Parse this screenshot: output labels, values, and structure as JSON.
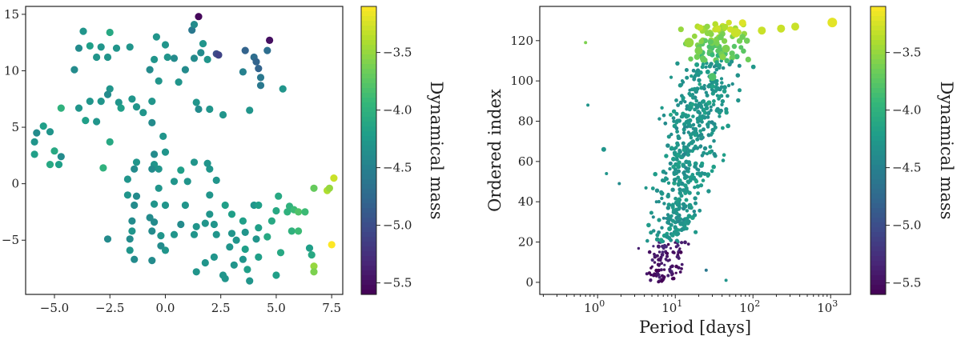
{
  "colors": {
    "viridis": [
      "#440154",
      "#482878",
      "#3e4989",
      "#31688e",
      "#26828e",
      "#1f9e89",
      "#35b779",
      "#6ece58",
      "#b5de2b",
      "#fde725"
    ],
    "axis": "#222222"
  },
  "chart_data": [
    {
      "type": "scatter",
      "title": "",
      "xlabel": "",
      "ylabel": "",
      "xlim": [
        -6.3,
        8.0
      ],
      "ylim": [
        -9.8,
        15.7
      ],
      "xticks": [
        -5.0,
        -2.5,
        0.0,
        2.5,
        5.0,
        7.5
      ],
      "xtick_labels": [
        "−5.0",
        "−2.5",
        "0.0",
        "2.5",
        "5.0",
        "7.5"
      ],
      "yticks": [
        -5,
        0,
        5,
        10,
        15
      ],
      "ytick_labels": [
        "−5",
        "0",
        "5",
        "10",
        "15"
      ],
      "colorbar": {
        "label": "Dynamical mass",
        "range": [
          -5.6,
          -3.1
        ],
        "ticks": [
          -3.5,
          -4.0,
          -4.5,
          -5.0,
          -5.5
        ],
        "tick_labels": [
          "−3.5",
          "−4.0",
          "−4.5",
          "−5.0",
          "−5.5"
        ]
      },
      "points": [
        [
          1.5,
          14.8,
          -5.55
        ],
        [
          1.2,
          13.6,
          -4.6
        ],
        [
          1.3,
          14.1,
          -4.4
        ],
        [
          4.7,
          12.7,
          -5.5
        ],
        [
          -3.7,
          13.5,
          -4.3
        ],
        [
          -2.5,
          13.4,
          -4.1
        ],
        [
          -0.4,
          13.0,
          -4.3
        ],
        [
          -3.4,
          12.2,
          -4.2
        ],
        [
          -2.9,
          12.1,
          -4.3
        ],
        [
          -2.2,
          12.0,
          -4.3
        ],
        [
          -3.9,
          12.0,
          -4.4
        ],
        [
          -1.6,
          12.1,
          -4.3
        ],
        [
          0.0,
          12.3,
          -4.3
        ],
        [
          -2.6,
          11.2,
          -4.3
        ],
        [
          -3.1,
          11.2,
          -4.3
        ],
        [
          -0.5,
          11.0,
          -4.3
        ],
        [
          0.1,
          11.2,
          -4.3
        ],
        [
          0.4,
          11.1,
          -4.4
        ],
        [
          1.7,
          12.4,
          -4.3
        ],
        [
          1.6,
          11.6,
          -4.4
        ],
        [
          1.3,
          11.1,
          -4.4
        ],
        [
          1.9,
          11.0,
          -4.3
        ],
        [
          2.3,
          11.5,
          -5.0
        ],
        [
          2.4,
          11.4,
          -4.4
        ],
        [
          2.4,
          11.4,
          -5.1
        ],
        [
          3.6,
          11.8,
          -4.8
        ],
        [
          4.6,
          11.8,
          -4.7
        ],
        [
          4.0,
          11.2,
          -4.7
        ],
        [
          4.1,
          10.8,
          -4.8
        ],
        [
          4.2,
          10.2,
          -4.8
        ],
        [
          4.3,
          9.4,
          -4.6
        ],
        [
          4.3,
          8.7,
          -4.6
        ],
        [
          3.5,
          9.9,
          -4.5
        ],
        [
          -4.1,
          10.1,
          -4.4
        ],
        [
          -0.7,
          10.1,
          -4.4
        ],
        [
          0.9,
          10.1,
          -4.4
        ],
        [
          -0.3,
          9.1,
          -4.3
        ],
        [
          0.6,
          9.0,
          -4.3
        ],
        [
          -2.5,
          8.4,
          -4.3
        ],
        [
          -2.6,
          7.9,
          -4.4
        ],
        [
          5.3,
          8.4,
          -4.3
        ],
        [
          -3.4,
          7.3,
          -4.3
        ],
        [
          -2.9,
          7.3,
          -4.3
        ],
        [
          -2.1,
          7.2,
          -4.3
        ],
        [
          -1.5,
          7.5,
          -4.3
        ],
        [
          -0.6,
          7.3,
          -4.3
        ],
        [
          1.4,
          7.2,
          -4.3
        ],
        [
          1.5,
          6.6,
          -4.4
        ],
        [
          -2.0,
          6.7,
          -4.2
        ],
        [
          -1.3,
          6.8,
          -4.3
        ],
        [
          -1.0,
          6.3,
          -4.3
        ],
        [
          2.0,
          6.6,
          -4.3
        ],
        [
          2.6,
          6.1,
          -4.3
        ],
        [
          3.8,
          6.5,
          -4.3
        ],
        [
          -3.9,
          6.7,
          -4.3
        ],
        [
          -3.6,
          5.6,
          -4.2
        ],
        [
          -3.1,
          5.5,
          -4.3
        ],
        [
          -0.6,
          5.4,
          -4.4
        ],
        [
          -4.7,
          6.7,
          -4.0
        ],
        [
          -5.5,
          5.1,
          -4.2
        ],
        [
          -5.2,
          4.6,
          -4.3
        ],
        [
          -5.8,
          4.5,
          -4.4
        ],
        [
          -0.1,
          4.2,
          -4.3
        ],
        [
          -2.5,
          3.7,
          -4.1
        ],
        [
          -5.9,
          3.7,
          -4.3
        ],
        [
          -5.0,
          2.9,
          -4.1
        ],
        [
          -5.9,
          2.6,
          -4.2
        ],
        [
          -4.7,
          2.4,
          -4.4
        ],
        [
          -5.2,
          1.7,
          -4.1
        ],
        [
          -4.8,
          1.7,
          -4.2
        ],
        [
          -0.5,
          2.6,
          -4.4
        ],
        [
          0.0,
          2.8,
          -4.3
        ],
        [
          -1.3,
          1.9,
          -4.3
        ],
        [
          -0.5,
          1.7,
          -4.3
        ],
        [
          1.3,
          1.9,
          -4.3
        ],
        [
          1.9,
          1.8,
          -4.3
        ],
        [
          -2.8,
          1.4,
          -4.0
        ],
        [
          -1.4,
          1.3,
          -4.4
        ],
        [
          -0.6,
          1.3,
          -4.4
        ],
        [
          -0.3,
          1.3,
          -4.3
        ],
        [
          0.7,
          1.2,
          -4.2
        ],
        [
          2.0,
          1.3,
          -4.3
        ],
        [
          -1.7,
          0.4,
          -4.3
        ],
        [
          0.4,
          0.2,
          -4.3
        ],
        [
          1.0,
          0.2,
          -4.3
        ],
        [
          2.3,
          0.3,
          -4.3
        ],
        [
          -0.3,
          -0.4,
          -4.3
        ],
        [
          -1.7,
          -1.0,
          -4.3
        ],
        [
          -1.3,
          -1.1,
          -4.4
        ],
        [
          2.0,
          -1.0,
          -4.3
        ],
        [
          -1.4,
          -1.9,
          -4.4
        ],
        [
          -0.5,
          -1.8,
          -4.3
        ],
        [
          0.0,
          -1.9,
          -4.3
        ],
        [
          0.9,
          -1.9,
          -4.3
        ],
        [
          2.7,
          -1.9,
          -4.2
        ],
        [
          4.0,
          -1.9,
          -4.3
        ],
        [
          4.2,
          -1.9,
          -4.2
        ],
        [
          5.1,
          -1.1,
          -4.1
        ],
        [
          5.6,
          -2.0,
          -4.0
        ],
        [
          5.8,
          -2.3,
          -3.9
        ],
        [
          6.7,
          -0.4,
          -3.7
        ],
        [
          7.3,
          -0.6,
          -3.4
        ],
        [
          7.6,
          0.5,
          -3.3
        ],
        [
          7.4,
          -0.4,
          -3.5
        ],
        [
          -1.5,
          -3.3,
          -4.4
        ],
        [
          -0.7,
          -3.0,
          -4.4
        ],
        [
          2.0,
          -2.7,
          -4.3
        ],
        [
          3.0,
          -2.7,
          -4.2
        ],
        [
          5.0,
          -2.4,
          -4.1
        ],
        [
          5.5,
          -2.5,
          -4.0
        ],
        [
          -0.5,
          -3.4,
          -4.4
        ],
        [
          0.7,
          -3.6,
          -4.4
        ],
        [
          2.2,
          -3.6,
          -4.3
        ],
        [
          3.5,
          -3.3,
          -4.2
        ],
        [
          6.0,
          -2.5,
          -3.8
        ],
        [
          6.3,
          -2.5,
          -3.9
        ],
        [
          1.4,
          -3.8,
          -4.3
        ],
        [
          1.8,
          -3.5,
          -4.3
        ],
        [
          4.2,
          -3.9,
          -4.2
        ],
        [
          4.8,
          -3.3,
          -4.1
        ],
        [
          -1.5,
          -4.2,
          -4.3
        ],
        [
          -0.6,
          -4.2,
          -4.4
        ],
        [
          1.3,
          -4.5,
          -4.3
        ],
        [
          2.3,
          -4.5,
          -4.3
        ],
        [
          3.0,
          -4.4,
          -4.3
        ],
        [
          3.6,
          -4.3,
          -4.3
        ],
        [
          5.7,
          -4.2,
          -4.0
        ],
        [
          6.0,
          -4.2,
          -3.9
        ],
        [
          -2.6,
          -4.9,
          -4.4
        ],
        [
          -1.6,
          -4.9,
          -4.4
        ],
        [
          -0.2,
          -4.6,
          -4.3
        ],
        [
          0.4,
          -4.5,
          -4.3
        ],
        [
          3.2,
          -5.0,
          -4.3
        ],
        [
          4.1,
          -4.9,
          -4.3
        ],
        [
          -0.2,
          -5.5,
          -4.4
        ],
        [
          -1.6,
          -5.9,
          -4.3
        ],
        [
          0.0,
          -5.9,
          -4.3
        ],
        [
          2.9,
          -5.6,
          -4.3
        ],
        [
          3.6,
          -5.8,
          -4.2
        ],
        [
          -1.4,
          -6.7,
          -4.4
        ],
        [
          -0.6,
          -6.8,
          -4.4
        ],
        [
          2.2,
          -6.5,
          -4.3
        ],
        [
          3.5,
          -6.7,
          -4.3
        ],
        [
          4.2,
          -6.5,
          -4.2
        ],
        [
          5.2,
          -6.1,
          -4.1
        ],
        [
          6.5,
          -5.7,
          -4.2
        ],
        [
          7.5,
          -5.4,
          -3.1
        ],
        [
          3.1,
          -7.2,
          -4.3
        ],
        [
          1.8,
          -7.0,
          -4.3
        ],
        [
          3.7,
          -7.6,
          -4.2
        ],
        [
          6.7,
          -7.3,
          -3.5
        ],
        [
          6.7,
          -7.8,
          -3.6
        ],
        [
          1.4,
          -7.8,
          -4.3
        ],
        [
          2.6,
          -8.1,
          -4.3
        ],
        [
          2.7,
          -8.4,
          -4.3
        ],
        [
          3.8,
          -8.6,
          -4.3
        ],
        [
          5.0,
          -8.1,
          -4.2
        ],
        [
          6.6,
          -6.3,
          -4.1
        ],
        [
          4.6,
          -4.7,
          -4.1
        ]
      ]
    },
    {
      "type": "scatter",
      "title": "",
      "xlabel": "Period [days]",
      "ylabel": "Ordered index",
      "xscale": "log",
      "xlim": [
        0.18,
        1800
      ],
      "ylim": [
        -6,
        137
      ],
      "xticks": [
        1,
        10,
        100,
        1000
      ],
      "xtick_labels": [
        "10^0",
        "10^1",
        "10^2",
        "10^3"
      ],
      "yticks": [
        0,
        20,
        40,
        60,
        80,
        100,
        120
      ],
      "ytick_labels": [
        "0",
        "20",
        "40",
        "60",
        "80",
        "100",
        "120"
      ],
      "colorbar": {
        "label": "Dynamical mass",
        "range": [
          -5.6,
          -3.1
        ],
        "ticks": [
          -3.5,
          -4.0,
          -4.5,
          -5.0,
          -5.5
        ],
        "tick_labels": [
          "−3.5",
          "−4.0",
          "−4.5",
          "−5.0",
          "−5.5"
        ]
      },
      "generator": {
        "description": "dense cloud of ~700 points; ordered index rises with period, mass increases with index",
        "n_points": 700,
        "index_max": 129,
        "mass_min": -5.5,
        "mass_max": -3.2
      },
      "highlights": [
        [
          1050,
          129,
          -3.2,
          6
        ],
        [
          350,
          127,
          -3.3,
          5
        ],
        [
          230,
          126,
          -3.3,
          5
        ],
        [
          130,
          125,
          -3.3,
          5
        ],
        [
          60,
          124,
          -3.3,
          6
        ],
        [
          15,
          119,
          -3.5,
          6
        ],
        [
          20,
          115,
          -3.6,
          5
        ],
        [
          45,
          116,
          -3.6,
          5
        ],
        [
          30,
          102,
          -3.8,
          5
        ],
        [
          0.7,
          119,
          -3.6,
          2
        ],
        [
          0.75,
          88,
          -4.3,
          2
        ],
        [
          1.2,
          66,
          -4.3,
          3
        ],
        [
          1.3,
          54,
          -4.3,
          2
        ],
        [
          1.9,
          49,
          -4.4,
          2
        ],
        [
          45,
          1,
          -4.3,
          2
        ],
        [
          25,
          6,
          -4.6,
          2
        ]
      ]
    }
  ]
}
